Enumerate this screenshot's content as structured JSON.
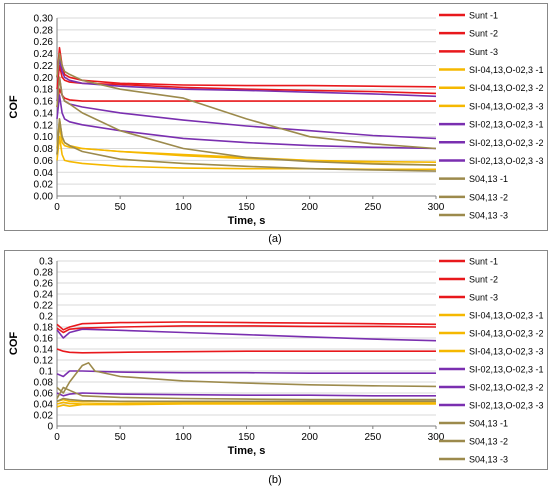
{
  "panel_labels": [
    "(a)",
    "(b)"
  ],
  "colors": {
    "Sunt": "#e8181c",
    "SiO": "#f5b800",
    "SiO2": "#7a2fb0",
    "S04": "#9c8a4c",
    "grid": "#d9d9d9",
    "axis": "#7f7f7f"
  },
  "legend": [
    "Sunt -1",
    "Sunt -2",
    "Sunt -3",
    "SI-04,13,O-02,3 -1",
    "SI-04,13,O-02,3 -2",
    "SI-04,13,O-02,3 -3",
    "SI-02,13,O-02,3 -1",
    "SI-02,13,O-02,3 -2",
    "SI-02,13,O-02,3 -3",
    "S04,13 -1",
    "S04,13 -2",
    "S04,13 -3"
  ],
  "chart_data": [
    {
      "type": "line",
      "xlabel": "Time, s",
      "ylabel": "COF",
      "xlim": [
        0,
        300
      ],
      "ylim": [
        0,
        0.3
      ],
      "xticks": [
        "0",
        "50",
        "100",
        "150",
        "200",
        "250",
        "300"
      ],
      "yticks": [
        "0.00",
        "0.02",
        "0.04",
        "0.06",
        "0.08",
        "0.10",
        "0.12",
        "0.14",
        "0.16",
        "0.18",
        "0.20",
        "0.22",
        "0.24",
        "0.26",
        "0.28",
        "0.30"
      ],
      "grid": true,
      "legend_position": "right",
      "series": [
        {
          "name": "Sunt -1",
          "group": "Sunt",
          "x": [
            0,
            2,
            4,
            6,
            10,
            20,
            50,
            100,
            150,
            200,
            250,
            300
          ],
          "y": [
            0.2,
            0.25,
            0.22,
            0.205,
            0.2,
            0.195,
            0.19,
            0.187,
            0.186,
            0.186,
            0.185,
            0.184
          ]
        },
        {
          "name": "Sunt -2",
          "group": "Sunt",
          "x": [
            0,
            2,
            4,
            6,
            10,
            20,
            50,
            100,
            150,
            200,
            250,
            300
          ],
          "y": [
            0.18,
            0.22,
            0.2,
            0.195,
            0.192,
            0.19,
            0.188,
            0.183,
            0.18,
            0.178,
            0.176,
            0.173
          ]
        },
        {
          "name": "Sunt -3",
          "group": "Sunt",
          "x": [
            0,
            2,
            4,
            6,
            10,
            20,
            50,
            100,
            150,
            200,
            250,
            300
          ],
          "y": [
            0.15,
            0.18,
            0.17,
            0.165,
            0.162,
            0.16,
            0.16,
            0.16,
            0.16,
            0.16,
            0.16,
            0.16
          ]
        },
        {
          "name": "SI-04,13,O-02,3 -1",
          "group": "SiO",
          "x": [
            0,
            2,
            4,
            6,
            10,
            20,
            50,
            100,
            150,
            200,
            250,
            300
          ],
          "y": [
            0.07,
            0.12,
            0.09,
            0.085,
            0.082,
            0.08,
            0.075,
            0.068,
            0.063,
            0.06,
            0.058,
            0.057
          ]
        },
        {
          "name": "SI-04,13,O-02,3 -2",
          "group": "SiO",
          "x": [
            0,
            2,
            4,
            6,
            10,
            20,
            50,
            100,
            150,
            200,
            250,
            300
          ],
          "y": [
            0.08,
            0.13,
            0.1,
            0.09,
            0.085,
            0.08,
            0.075,
            0.07,
            0.065,
            0.06,
            0.055,
            0.052
          ]
        },
        {
          "name": "SI-04,13,O-02,3 -3",
          "group": "SiO",
          "x": [
            0,
            2,
            4,
            6,
            10,
            20,
            50,
            100,
            150,
            200,
            250,
            300
          ],
          "y": [
            0.06,
            0.1,
            0.07,
            0.06,
            0.058,
            0.055,
            0.05,
            0.047,
            0.046,
            0.046,
            0.045,
            0.045
          ]
        },
        {
          "name": "SI-02,13,O-02,3 -1",
          "group": "SiO2",
          "x": [
            0,
            2,
            4,
            6,
            10,
            20,
            50,
            100,
            150,
            200,
            250,
            300
          ],
          "y": [
            0.2,
            0.23,
            0.21,
            0.2,
            0.195,
            0.19,
            0.185,
            0.18,
            0.178,
            0.175,
            0.172,
            0.168
          ]
        },
        {
          "name": "SI-02,13,O-02,3 -2",
          "group": "SiO2",
          "x": [
            0,
            2,
            4,
            6,
            10,
            20,
            50,
            100,
            150,
            200,
            250,
            300
          ],
          "y": [
            0.16,
            0.2,
            0.17,
            0.16,
            0.155,
            0.15,
            0.14,
            0.128,
            0.118,
            0.11,
            0.102,
            0.097
          ]
        },
        {
          "name": "SI-02,13,O-02,3 -3",
          "group": "SiO2",
          "x": [
            0,
            2,
            4,
            6,
            10,
            20,
            50,
            100,
            150,
            200,
            250,
            300
          ],
          "y": [
            0.13,
            0.17,
            0.14,
            0.13,
            0.125,
            0.12,
            0.11,
            0.097,
            0.09,
            0.085,
            0.082,
            0.08
          ]
        },
        {
          "name": "S04,13 -1",
          "group": "S04",
          "x": [
            0,
            2,
            4,
            6,
            10,
            20,
            50,
            100,
            150,
            200,
            250,
            300
          ],
          "y": [
            0.2,
            0.24,
            0.22,
            0.21,
            0.205,
            0.195,
            0.18,
            0.165,
            0.13,
            0.1,
            0.088,
            0.08
          ]
        },
        {
          "name": "S04,13 -2",
          "group": "S04",
          "x": [
            0,
            2,
            4,
            6,
            10,
            20,
            50,
            100,
            150,
            200,
            250,
            300
          ],
          "y": [
            0.15,
            0.2,
            0.17,
            0.16,
            0.155,
            0.14,
            0.11,
            0.08,
            0.065,
            0.058,
            0.054,
            0.052
          ]
        },
        {
          "name": "S04,13 -3",
          "group": "S04",
          "x": [
            0,
            2,
            4,
            6,
            10,
            20,
            50,
            100,
            150,
            200,
            250,
            300
          ],
          "y": [
            0.07,
            0.13,
            0.1,
            0.09,
            0.085,
            0.075,
            0.062,
            0.055,
            0.05,
            0.046,
            0.044,
            0.042
          ]
        }
      ]
    },
    {
      "type": "line",
      "xlabel": "Time, s",
      "ylabel": "COF",
      "xlim": [
        0,
        300
      ],
      "ylim": [
        0,
        0.3
      ],
      "xticks": [
        "0",
        "50",
        "100",
        "150",
        "200",
        "250",
        "300"
      ],
      "yticks": [
        "0",
        "0.02",
        "0.04",
        "0.06",
        "0.08",
        "0.1",
        "0.12",
        "0.14",
        "0.16",
        "0.18",
        "0.2",
        "0.22",
        "0.24",
        "0.26",
        "0.28",
        "0.3"
      ],
      "grid": true,
      "legend_position": "right",
      "series": [
        {
          "name": "Sunt -1",
          "group": "Sunt",
          "x": [
            0,
            5,
            10,
            20,
            50,
            100,
            150,
            200,
            250,
            300
          ],
          "y": [
            0.185,
            0.175,
            0.18,
            0.186,
            0.188,
            0.189,
            0.188,
            0.187,
            0.186,
            0.185
          ]
        },
        {
          "name": "Sunt -2",
          "group": "Sunt",
          "x": [
            0,
            5,
            10,
            20,
            50,
            100,
            150,
            200,
            250,
            300
          ],
          "y": [
            0.178,
            0.17,
            0.176,
            0.178,
            0.18,
            0.182,
            0.182,
            0.181,
            0.181,
            0.18
          ]
        },
        {
          "name": "Sunt -3",
          "group": "Sunt",
          "x": [
            0,
            5,
            10,
            20,
            50,
            100,
            150,
            200,
            250,
            300
          ],
          "y": [
            0.14,
            0.136,
            0.134,
            0.133,
            0.134,
            0.135,
            0.136,
            0.136,
            0.136,
            0.136
          ]
        },
        {
          "name": "SI-04,13,O-02,3 -1",
          "group": "SiO",
          "x": [
            0,
            5,
            10,
            20,
            50,
            100,
            150,
            200,
            250,
            300
          ],
          "y": [
            0.045,
            0.048,
            0.045,
            0.044,
            0.045,
            0.045,
            0.045,
            0.045,
            0.045,
            0.045
          ]
        },
        {
          "name": "SI-04,13,O-02,3 -2",
          "group": "SiO",
          "x": [
            0,
            5,
            10,
            20,
            50,
            100,
            150,
            200,
            250,
            300
          ],
          "y": [
            0.04,
            0.043,
            0.041,
            0.04,
            0.041,
            0.042,
            0.042,
            0.042,
            0.042,
            0.042
          ]
        },
        {
          "name": "SI-04,13,O-02,3 -3",
          "group": "SiO",
          "x": [
            0,
            5,
            10,
            20,
            50,
            100,
            150,
            200,
            250,
            300
          ],
          "y": [
            0.035,
            0.038,
            0.036,
            0.039,
            0.039,
            0.04,
            0.04,
            0.04,
            0.04,
            0.04
          ]
        },
        {
          "name": "SI-02,13,O-02,3 -1",
          "group": "SiO2",
          "x": [
            0,
            5,
            10,
            20,
            50,
            100,
            150,
            200,
            250,
            300
          ],
          "y": [
            0.175,
            0.16,
            0.17,
            0.176,
            0.174,
            0.17,
            0.166,
            0.162,
            0.158,
            0.155
          ]
        },
        {
          "name": "SI-02,13,O-02,3 -2",
          "group": "SiO2",
          "x": [
            0,
            5,
            10,
            20,
            50,
            100,
            150,
            200,
            250,
            300
          ],
          "y": [
            0.095,
            0.09,
            0.1,
            0.1,
            0.098,
            0.097,
            0.097,
            0.096,
            0.096,
            0.096
          ]
        },
        {
          "name": "SI-02,13,O-02,3 -3",
          "group": "SiO2",
          "x": [
            0,
            5,
            10,
            20,
            50,
            100,
            150,
            200,
            250,
            300
          ],
          "y": [
            0.06,
            0.055,
            0.058,
            0.06,
            0.058,
            0.057,
            0.056,
            0.056,
            0.055,
            0.055
          ]
        },
        {
          "name": "S04,13 -1",
          "group": "S04",
          "x": [
            0,
            5,
            10,
            20,
            25,
            30,
            50,
            100,
            150,
            200,
            250,
            300
          ],
          "y": [
            0.07,
            0.06,
            0.08,
            0.11,
            0.115,
            0.1,
            0.09,
            0.082,
            0.078,
            0.075,
            0.073,
            0.072
          ]
        },
        {
          "name": "S04,13 -2",
          "group": "S04",
          "x": [
            0,
            5,
            10,
            20,
            50,
            100,
            150,
            200,
            250,
            300
          ],
          "y": [
            0.05,
            0.07,
            0.065,
            0.055,
            0.052,
            0.05,
            0.049,
            0.048,
            0.048,
            0.048
          ]
        },
        {
          "name": "S04,13 -3",
          "group": "S04",
          "x": [
            0,
            5,
            10,
            20,
            50,
            100,
            150,
            200,
            250,
            300
          ],
          "y": [
            0.045,
            0.05,
            0.048,
            0.046,
            0.045,
            0.045,
            0.045,
            0.045,
            0.045,
            0.045
          ]
        }
      ]
    }
  ]
}
